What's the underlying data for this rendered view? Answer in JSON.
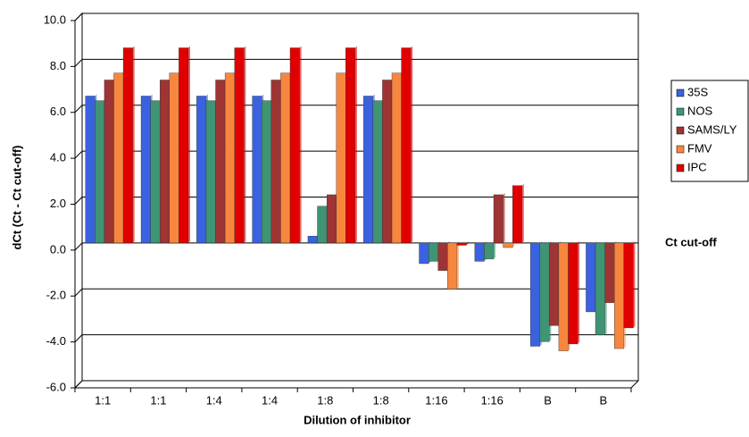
{
  "chart_data": {
    "type": "bar",
    "x_label": "Dilution of inhibitor",
    "y_label": "dCt (Ct - Ct cut-off)",
    "annotation": "Ct cut-off",
    "categories": [
      "1:1",
      "1:1",
      "1:4",
      "1:4",
      "1:8",
      "1:8",
      "1:16",
      "1:16",
      "B",
      "B"
    ],
    "series": [
      {
        "name": "35S",
        "color": "#3a62e0",
        "values": [
          6.4,
          6.4,
          6.4,
          6.4,
          0.3,
          6.4,
          -0.9,
          -0.8,
          -4.5,
          -3.0
        ]
      },
      {
        "name": "NOS",
        "color": "#3f9474",
        "values": [
          6.2,
          6.2,
          6.2,
          6.2,
          1.6,
          6.2,
          -0.8,
          -0.7,
          -4.3,
          -4.0
        ]
      },
      {
        "name": "SAMS/LY",
        "color": "#9e3434",
        "values": [
          7.1,
          7.1,
          7.1,
          7.1,
          2.1,
          7.1,
          -1.2,
          2.1,
          -3.6,
          -2.6
        ]
      },
      {
        "name": "FMV",
        "color": "#f7873e",
        "values": [
          7.4,
          7.4,
          7.4,
          7.4,
          7.4,
          7.4,
          -2.0,
          -0.2,
          -4.7,
          -4.6
        ]
      },
      {
        "name": "IPC",
        "color": "#e00000",
        "values": [
          8.5,
          8.5,
          8.5,
          8.5,
          8.5,
          8.5,
          -0.1,
          2.5,
          -4.4,
          -3.7
        ]
      }
    ],
    "ylim": [
      -6,
      10
    ],
    "yticks": [
      {
        "value": -6,
        "label": "-6.0"
      },
      {
        "value": -4,
        "label": "-4.0"
      },
      {
        "value": -2,
        "label": "-2.0"
      },
      {
        "value": 0,
        "label": "0.0"
      },
      {
        "value": 2,
        "label": "2.0"
      },
      {
        "value": 4,
        "label": "4.0"
      },
      {
        "value": 6,
        "label": "6.0"
      },
      {
        "value": 8,
        "label": "8.0"
      },
      {
        "value": 10,
        "label": "10.0"
      }
    ],
    "grid": true,
    "legend": "right"
  }
}
